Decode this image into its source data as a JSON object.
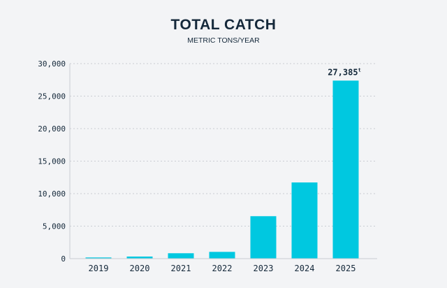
{
  "chart_data": {
    "type": "bar",
    "title": "TOTAL CATCH",
    "subtitle": "METRIC TONS/YEAR",
    "categories": [
      "2019",
      "2020",
      "2021",
      "2022",
      "2023",
      "2024",
      "2025"
    ],
    "values": [
      180,
      320,
      830,
      1040,
      6530,
      11720,
      27385
    ],
    "ylim": [
      0,
      30000
    ],
    "yticks": [
      0,
      5000,
      10000,
      15000,
      20000,
      25000,
      30000
    ],
    "ytick_labels": [
      "0",
      "5,000",
      "10,000",
      "15,000",
      "20,000",
      "25,000",
      "30,000"
    ],
    "annotation": {
      "category": "2025",
      "text": "27,385",
      "unit": "t"
    },
    "grid": true,
    "bar_color": "#00c8e0",
    "text_color": "#14283a"
  }
}
